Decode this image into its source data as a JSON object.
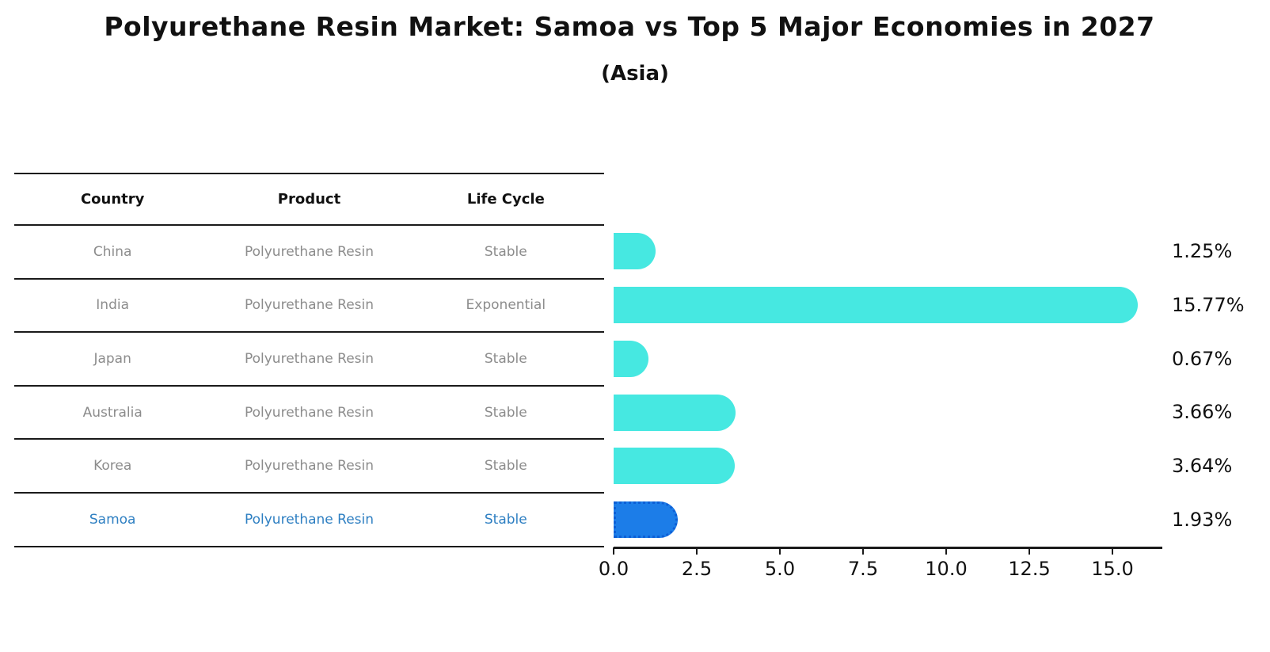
{
  "title": "Polyurethane Resin Market: Samoa vs Top 5 Major Economies in 2027",
  "subtitle": "(Asia)",
  "table": {
    "headers": [
      "Country",
      "Product",
      "Life Cycle"
    ],
    "rows": [
      {
        "country": "China",
        "product": "Polyurethane Resin",
        "life_cycle": "Stable",
        "highlight": false
      },
      {
        "country": "India",
        "product": "Polyurethane Resin",
        "life_cycle": "Exponential",
        "highlight": false
      },
      {
        "country": "Japan",
        "product": "Polyurethane Resin",
        "life_cycle": "Stable",
        "highlight": false
      },
      {
        "country": "Australia",
        "product": "Polyurethane Resin",
        "life_cycle": "Stable",
        "highlight": false
      },
      {
        "country": "Korea",
        "product": "Polyurethane Resin",
        "life_cycle": "Stable",
        "highlight": false
      },
      {
        "country": "Samoa",
        "product": "Polyurethane Resin",
        "life_cycle": "Stable",
        "highlight": true
      }
    ]
  },
  "chart_data": {
    "type": "bar",
    "orientation": "horizontal",
    "title": "Polyurethane Resin Market: Samoa vs Top 5 Major Economies in 2027",
    "subtitle": "(Asia)",
    "categories": [
      "China",
      "India",
      "Japan",
      "Australia",
      "Korea",
      "Samoa"
    ],
    "values": [
      1.25,
      15.77,
      0.67,
      3.66,
      3.64,
      1.93
    ],
    "value_labels": [
      "1.25%",
      "15.77%",
      "0.67%",
      "3.66%",
      "3.64%",
      "1.93%"
    ],
    "highlight_index": 5,
    "xlim": [
      0,
      16.5
    ],
    "x_tick_values": [
      0,
      2.5,
      5,
      7.5,
      10,
      12.5,
      15
    ],
    "x_tick_labels": [
      "0.0",
      "2.5",
      "5.0",
      "7.5",
      "10.0",
      "12.5",
      "15.0"
    ],
    "grid": false,
    "legend": "none",
    "bar_color": "#46e8e1",
    "highlight_bar_color": "#1c7de8",
    "highlight_border_color": "#0d5fd6"
  },
  "colors": {
    "background": "#ffffff",
    "text_primary": "#111111",
    "text_muted": "#8c8c8c",
    "highlight_text": "#2e7fc2",
    "axis": "#1a1a1a"
  }
}
